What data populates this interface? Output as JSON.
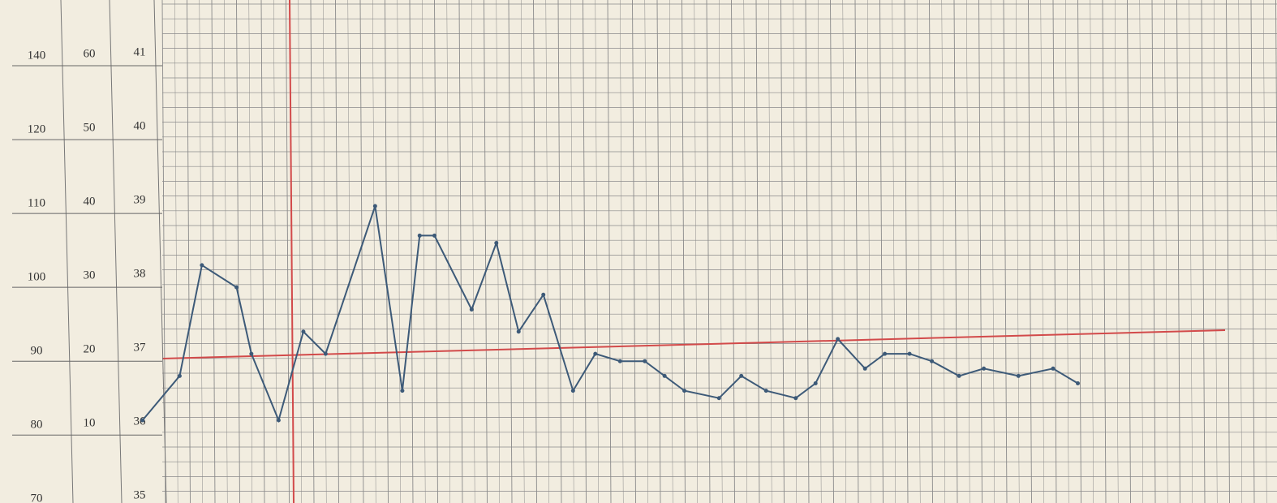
{
  "chart_data": {
    "type": "line",
    "pulse_labels": [
      "140",
      "120",
      "110",
      "100",
      "90",
      "80",
      "70"
    ],
    "respiration_labels": [
      "60",
      "50",
      "40",
      "30",
      "20",
      "10"
    ],
    "x": [
      -0.8,
      0.7,
      1.6,
      3.0,
      3.6,
      4.7,
      5.7,
      6.6,
      8.6,
      9.7,
      10.4,
      11.0,
      12.5,
      13.5,
      14.4,
      15.4,
      16.6,
      17.5,
      18.5,
      19.5,
      20.3,
      21.1,
      22.5,
      23.4,
      24.4,
      25.6,
      26.4,
      27.3,
      28.4,
      29.2,
      30.2,
      31.1,
      32.2,
      33.2,
      34.6,
      36.0,
      37.0
    ],
    "series": [
      {
        "color": "#3d5a78",
        "values": [
          36.2,
          36.8,
          38.3,
          38.0,
          37.1,
          36.2,
          37.4,
          37.1,
          39.1,
          36.6,
          38.7,
          38.7,
          37.7,
          38.6,
          37.4,
          37.9,
          36.6,
          37.1,
          37.0,
          37.0,
          36.8,
          36.6,
          36.5,
          36.8,
          36.6,
          36.5,
          36.7,
          37.3,
          36.9,
          37.1,
          37.1,
          37.0,
          36.8,
          36.9,
          36.8,
          36.9,
          36.7
        ]
      }
    ],
    "xlim": [
      -6.56,
      45.05
    ],
    "ylim": [
      35.08,
      41.89
    ],
    "yticks": [
      41,
      40,
      39,
      38,
      37,
      36,
      35
    ],
    "grid": true
  }
}
